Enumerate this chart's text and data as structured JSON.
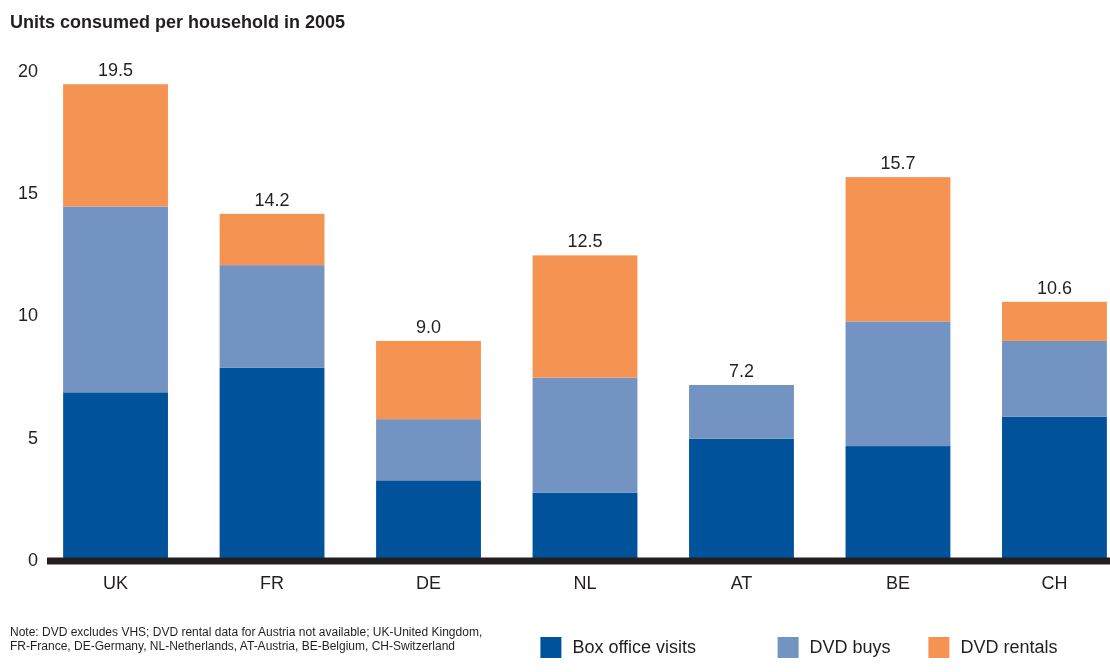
{
  "chart_data": {
    "type": "bar",
    "title": "Units consumed per household in 2005",
    "categories": [
      "UK",
      "FR",
      "DE",
      "NL",
      "AT",
      "BE",
      "CH"
    ],
    "stacked": true,
    "series": [
      {
        "name": "Box office visits",
        "color": "#00539b",
        "values": [
          6.9,
          7.9,
          3.3,
          2.8,
          5.0,
          4.7,
          5.9
        ]
      },
      {
        "name": "DVD buys",
        "color": "#7393c2",
        "values": [
          7.6,
          4.2,
          2.5,
          4.7,
          2.2,
          5.1,
          3.1
        ]
      },
      {
        "name": "DVD rentals",
        "color": "#f59352",
        "values": [
          5.0,
          2.1,
          3.2,
          5.0,
          null,
          5.9,
          1.6
        ]
      }
    ],
    "totals": [
      "19.5",
      "14.2",
      "9.0",
      "12.5",
      "7.2",
      "15.7",
      "10.6"
    ],
    "ylim": [
      0,
      20
    ],
    "yticks": [
      0,
      5,
      10,
      15,
      20
    ],
    "legend": "bottom right",
    "annotations": [
      "Note: DVD excludes VHS; DVD rental data for Austria not available; UK-United Kingdom, FR-France, DE-Germany, NL-Netherlands, AT-Austria, BE-Belgium, CH-Switzerland"
    ]
  }
}
